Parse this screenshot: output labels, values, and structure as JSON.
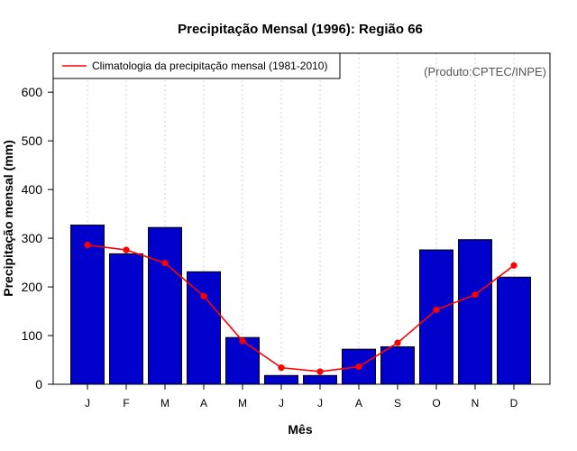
{
  "chart_data": {
    "type": "bar",
    "title": "Precipitação Mensal (1996): Região 66",
    "xlabel": "Mês",
    "ylabel": "Precipitação mensal (mm)",
    "ylim": [
      0,
      680
    ],
    "yticks": [
      0,
      100,
      200,
      300,
      400,
      500,
      600
    ],
    "categories": [
      "J",
      "F",
      "M",
      "A",
      "M",
      "J",
      "J",
      "A",
      "S",
      "O",
      "N",
      "D"
    ],
    "series": [
      {
        "name": "Precipitação mensal (1996)",
        "type": "bar",
        "color": "#0000cd",
        "values": [
          327,
          268,
          322,
          231,
          96,
          18,
          18,
          72,
          77,
          276,
          297,
          220
        ]
      },
      {
        "name": "Climatologia da precipitação mensal (1981-2010)",
        "type": "line",
        "color": "#ff0000",
        "values": [
          286,
          276,
          249,
          181,
          89,
          34,
          26,
          36,
          85,
          153,
          184,
          244
        ]
      }
    ],
    "legend": {
      "position": "top-left",
      "entries": [
        "Climatologia da precipitação mensal (1981-2010)"
      ]
    },
    "annotation": "(Produto:CPTEC/INPE)",
    "grid": "vertical dotted"
  }
}
